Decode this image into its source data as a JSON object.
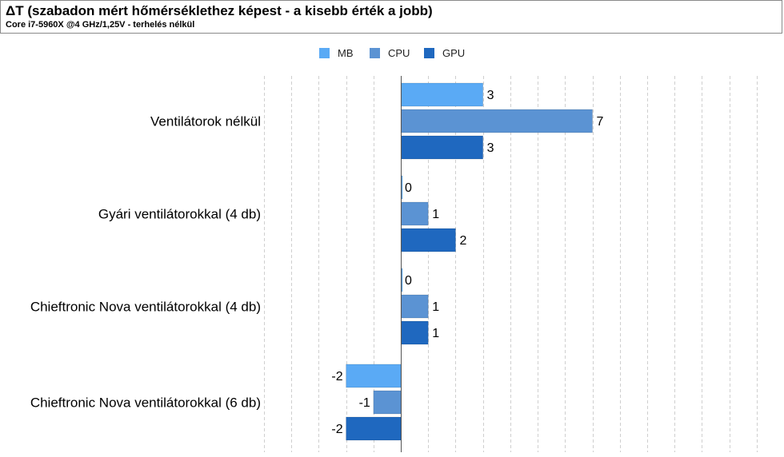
{
  "header": {
    "title": "ΔT (szabadon mért hőmérséklethez képest - a kisebb érték a jobb)",
    "subtitle": "Core i7-5960X @4 GHz/1,25V - terhelés nélkül"
  },
  "chart_data": {
    "type": "bar",
    "orientation": "horizontal",
    "title": "ΔT (szabadon mért hőmérséklethez képest - a kisebb érték a jobb)",
    "subtitle": "Core i7-5960X @4 GHz/1,25V - terhelés nélkül",
    "xlabel": "",
    "ylabel": "",
    "categories": [
      "Ventilátorok nélkül",
      "Gyári ventilátorokkal (4 db)",
      "Chieftronic Nova ventilátorokkal (4 db)",
      "Chieftronic Nova ventilátorokkal (6 db)"
    ],
    "series": [
      {
        "name": "MB",
        "color": "#5aaaf5",
        "values": [
          3,
          0,
          0,
          -2
        ]
      },
      {
        "name": "CPU",
        "color": "#5b93d3",
        "values": [
          7,
          1,
          1,
          -1
        ]
      },
      {
        "name": "GPU",
        "color": "#1f68bf",
        "values": [
          3,
          2,
          1,
          -2
        ]
      }
    ],
    "xlim": [
      -5,
      14
    ],
    "grid": true,
    "legend_position": "top"
  }
}
